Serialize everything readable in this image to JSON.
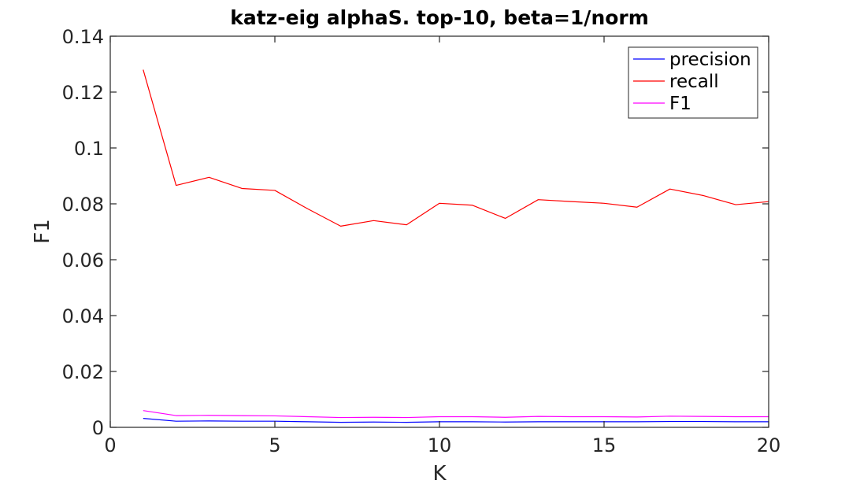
{
  "chart_data": {
    "type": "line",
    "title": "katz-eig alphaS. top-10, beta=1/norm",
    "xlabel": "K",
    "ylabel": "F1",
    "xlim": [
      0,
      20
    ],
    "ylim": [
      0,
      0.14
    ],
    "xticks": [
      "0",
      "5",
      "10",
      "15",
      "20"
    ],
    "xtick_values": [
      0,
      5,
      10,
      15,
      20
    ],
    "yticks": [
      "0",
      "0.02",
      "0.04",
      "0.06",
      "0.08",
      "0.1",
      "0.12",
      "0.14"
    ],
    "ytick_values": [
      0,
      0.02,
      0.04,
      0.06,
      0.08,
      0.1,
      0.12,
      0.14
    ],
    "grid": false,
    "legend_position": "top-right",
    "x": [
      1,
      2,
      3,
      4,
      5,
      6,
      7,
      8,
      9,
      10,
      11,
      12,
      13,
      14,
      15,
      16,
      17,
      18,
      19,
      20
    ],
    "series": [
      {
        "name": "precision",
        "color": "#0000ff",
        "values": [
          0.0032,
          0.0022,
          0.0023,
          0.0022,
          0.0022,
          0.002,
          0.0018,
          0.0019,
          0.0018,
          0.002,
          0.002,
          0.0019,
          0.002,
          0.002,
          0.002,
          0.002,
          0.0021,
          0.0021,
          0.002,
          0.002
        ]
      },
      {
        "name": "recall",
        "color": "#ff0000",
        "values": [
          0.128,
          0.0866,
          0.0895,
          0.0855,
          0.0848,
          0.0782,
          0.072,
          0.074,
          0.0725,
          0.0802,
          0.0795,
          0.0748,
          0.0815,
          0.0808,
          0.0802,
          0.0788,
          0.0853,
          0.083,
          0.0797,
          0.0808
        ]
      },
      {
        "name": "F1",
        "color": "#ff00ff",
        "values": [
          0.006,
          0.0042,
          0.0043,
          0.0042,
          0.0041,
          0.0038,
          0.0035,
          0.0036,
          0.0035,
          0.0038,
          0.0038,
          0.0036,
          0.0039,
          0.0038,
          0.0038,
          0.0037,
          0.004,
          0.0039,
          0.0038,
          0.0038
        ]
      }
    ]
  }
}
